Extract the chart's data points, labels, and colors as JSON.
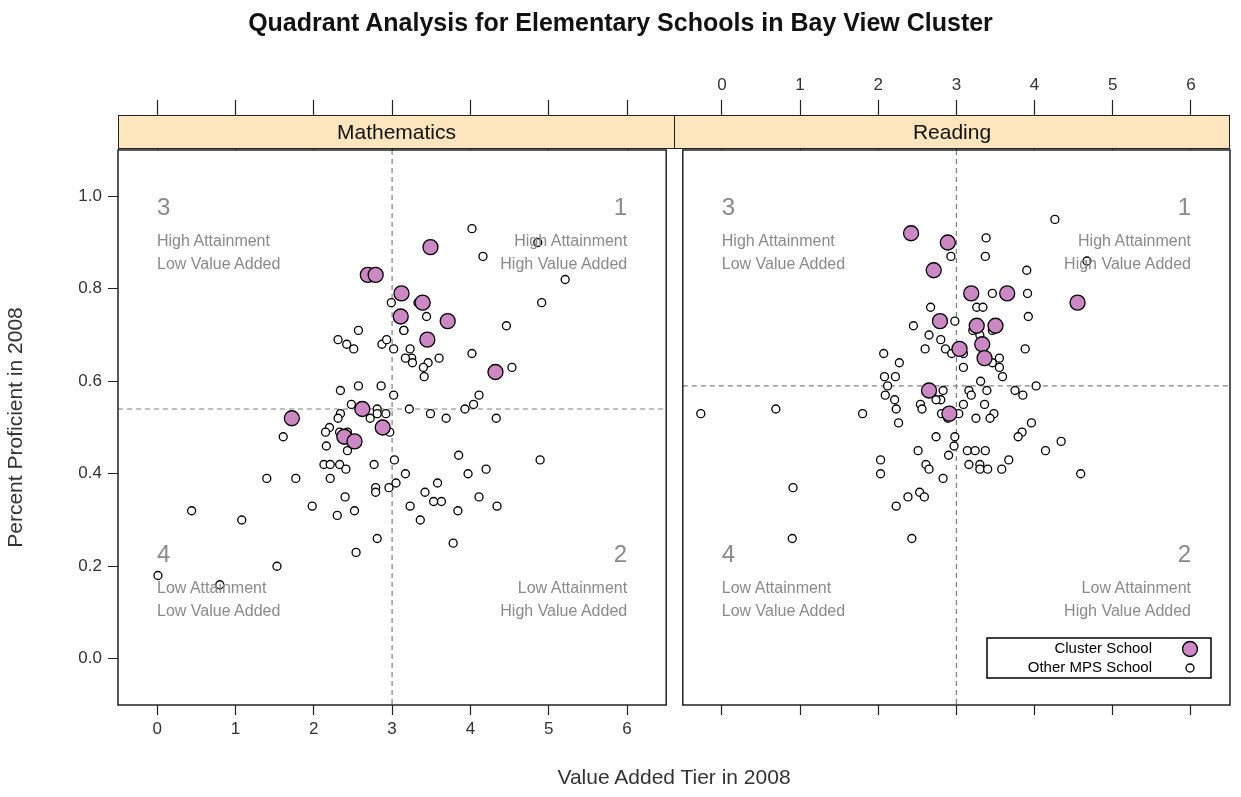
{
  "chart_data": [
    {
      "type": "scatter",
      "title": "Quadrant Analysis for Elementary Schools in Bay View Cluster",
      "subtitle": "Mathematics",
      "xlabel": "Value Added Tier in 2008",
      "ylabel": "Percent Proficient in 2008",
      "annotations": [
        "3",
        "High Attainment",
        "Low Value Added",
        "1",
        "High Attainment",
        "High Value Added",
        "4",
        "Low Attainment",
        "Low Value Added",
        "2",
        "Low Attainment",
        "High Value Added"
      ],
      "series": [
        {
          "color": "#cc88c4",
          "x": [
            3.49,
            2.69,
            2.79,
            3.12,
            3.39,
            3.11,
            3.71,
            3.45,
            4.32,
            1.72,
            2.62,
            2.88,
            2.39,
            2.52
          ],
          "values": [
            0.89,
            0.83,
            0.83,
            0.79,
            0.77,
            0.74,
            0.73,
            0.69,
            0.62,
            0.52,
            0.54,
            0.5,
            0.48,
            0.47
          ]
        },
        {
          "color": "#ffffff",
          "x": [
            4.02,
            4.86,
            4.16,
            5.21,
            4.91,
            2.99,
            3.33,
            3.44,
            4.46,
            3.15,
            3.15,
            2.57,
            2.31,
            2.42,
            2.51,
            2.87,
            2.93,
            3.02,
            3.23,
            3.25,
            3.17,
            3.26,
            3.46,
            3.6,
            3.4,
            3.41,
            4.02,
            4.53,
            2.34,
            2.57,
            2.86,
            3.02,
            4.11,
            4.04,
            3.93,
            2.34,
            2.48,
            2.81,
            2.81,
            2.72,
            2.92,
            3.22,
            3.49,
            3.69,
            4.33,
            2.31,
            2.2,
            2.15,
            2.33,
            2.43,
            2.97,
            1.61,
            2.16,
            2.43,
            3.03,
            3.85,
            4.89,
            2.13,
            2.21,
            2.33,
            2.41,
            2.77,
            3.17,
            3.97,
            4.2,
            1.4,
            1.77,
            2.21,
            2.79,
            2.96,
            3.05,
            3.58,
            3.42,
            2.79,
            2.4,
            3.63,
            3.53,
            4.11,
            3.23,
            4.34,
            3.84,
            1.98,
            2.52,
            2.3,
            0.44,
            1.08,
            3.36,
            2.81,
            3.78,
            2.54,
            1.53,
            0.01,
            0.8
          ],
          "values": [
            0.93,
            0.9,
            0.87,
            0.82,
            0.77,
            0.77,
            0.77,
            0.74,
            0.72,
            0.71,
            0.71,
            0.71,
            0.69,
            0.68,
            0.67,
            0.68,
            0.69,
            0.67,
            0.67,
            0.65,
            0.65,
            0.64,
            0.64,
            0.65,
            0.63,
            0.61,
            0.66,
            0.63,
            0.58,
            0.59,
            0.59,
            0.57,
            0.57,
            0.55,
            0.54,
            0.53,
            0.55,
            0.54,
            0.53,
            0.52,
            0.53,
            0.54,
            0.53,
            0.52,
            0.52,
            0.52,
            0.5,
            0.49,
            0.49,
            0.49,
            0.49,
            0.48,
            0.46,
            0.45,
            0.43,
            0.44,
            0.43,
            0.42,
            0.42,
            0.42,
            0.41,
            0.42,
            0.4,
            0.4,
            0.41,
            0.39,
            0.39,
            0.39,
            0.37,
            0.37,
            0.38,
            0.38,
            0.36,
            0.36,
            0.35,
            0.34,
            0.34,
            0.35,
            0.33,
            0.33,
            0.32,
            0.33,
            0.32,
            0.31,
            0.32,
            0.3,
            0.3,
            0.26,
            0.25,
            0.23,
            0.2,
            0.18,
            0.16
          ]
        }
      ],
      "xlim": [
        -0.5,
        6.5
      ],
      "xticks": [
        0,
        1,
        2,
        3,
        4,
        5,
        6
      ],
      "ylim": [
        -0.1,
        1.1
      ],
      "yticks": [
        {
          "value": 0,
          "label": "0.0"
        },
        0.2,
        0.4,
        0.6,
        0.8,
        {
          "value": 1,
          "label": "1.0"
        }
      ],
      "ref_lines": [
        {
          "axis": "x",
          "value": 3,
          "color": "#808080",
          "line_style": "dashed"
        },
        {
          "axis": "y",
          "value": 0.54,
          "color": "#808080",
          "line_style": "dashed"
        }
      ],
      "marker": "circle"
    },
    {
      "type": "scatter",
      "subtitle": "Reading",
      "annotations": [
        "3",
        "High Attainment",
        "Low Value Added",
        "1",
        "High Attainment",
        "High Value Added",
        "4",
        "Low Attainment",
        "Low Value Added",
        "2",
        "Low Attainment",
        "High Value Added"
      ],
      "series": [
        {
          "name": "Cluster School",
          "color": "#cc88c4",
          "x": [
            2.42,
            2.89,
            2.71,
            3.19,
            3.65,
            4.55,
            2.79,
            3.26,
            3.5,
            3.04,
            3.33,
            3.36,
            2.65,
            2.91
          ],
          "values": [
            0.92,
            0.9,
            0.84,
            0.79,
            0.79,
            0.77,
            0.73,
            0.72,
            0.72,
            0.67,
            0.68,
            0.65,
            0.58,
            0.53
          ]
        },
        {
          "name": "Other MPS School",
          "color": "#ffffff",
          "x": [
            4.26,
            3.38,
            2.93,
            3.37,
            4.67,
            3.9,
            3.46,
            3.91,
            2.67,
            3.26,
            3.34,
            3.92,
            2.98,
            2.45,
            2.65,
            2.8,
            3.21,
            3.3,
            3.46,
            2.6,
            2.86,
            2.94,
            3.09,
            3.88,
            2.07,
            2.27,
            3.55,
            3.46,
            3.55,
            3.09,
            2.08,
            2.22,
            3.31,
            3.59,
            2.12,
            4.02,
            3.75,
            2.09,
            2.83,
            3.16,
            3.39,
            3.85,
            3.19,
            2.8,
            2.21,
            2.74,
            2.54,
            3.36,
            3.09,
            2.56,
            0.69,
            -0.27,
            1.8,
            2.23,
            2.81,
            3.03,
            3.48,
            2.26,
            2.89,
            3.25,
            3.43,
            3.96,
            3.84,
            3.79,
            2.98,
            2.74,
            4.34,
            2.97,
            2.51,
            4.14,
            2.9,
            3.14,
            3.24,
            3.37,
            2.03,
            3.67,
            2.61,
            3.16,
            3.3,
            2.65,
            3.3,
            3.4,
            3.58,
            2.03,
            4.59,
            2.83,
            0.91,
            2.38,
            2.53,
            2.59,
            2.23,
            2.43,
            0.9
          ],
          "values": [
            0.95,
            0.91,
            0.87,
            0.87,
            0.86,
            0.84,
            0.79,
            0.79,
            0.76,
            0.76,
            0.76,
            0.74,
            0.73,
            0.72,
            0.7,
            0.69,
            0.71,
            0.7,
            0.71,
            0.67,
            0.67,
            0.66,
            0.66,
            0.67,
            0.66,
            0.64,
            0.65,
            0.64,
            0.63,
            0.63,
            0.61,
            0.61,
            0.6,
            0.61,
            0.59,
            0.59,
            0.58,
            0.57,
            0.58,
            0.58,
            0.58,
            0.57,
            0.57,
            0.56,
            0.56,
            0.56,
            0.55,
            0.55,
            0.55,
            0.54,
            0.54,
            0.53,
            0.53,
            0.54,
            0.53,
            0.53,
            0.53,
            0.51,
            0.52,
            0.52,
            0.52,
            0.51,
            0.49,
            0.48,
            0.48,
            0.48,
            0.47,
            0.46,
            0.45,
            0.45,
            0.44,
            0.45,
            0.45,
            0.45,
            0.43,
            0.43,
            0.42,
            0.42,
            0.42,
            0.41,
            0.41,
            0.41,
            0.41,
            0.4,
            0.4,
            0.39,
            0.37,
            0.35,
            0.36,
            0.35,
            0.33,
            0.26,
            0.26
          ]
        }
      ],
      "xlim": [
        -0.5,
        6.5
      ],
      "xticks": [
        0,
        1,
        2,
        3,
        4,
        5,
        6
      ],
      "ylim": [
        -0.1,
        1.1
      ],
      "tick_labels": "x",
      "ref_lines": [
        {
          "axis": "x",
          "value": 3,
          "color": "#808080",
          "line_style": "dashed"
        },
        {
          "axis": "y",
          "value": 0.59,
          "color": "#808080",
          "line_style": "dashed"
        }
      ],
      "marker": "circle",
      "legend": "bottom right"
    }
  ]
}
